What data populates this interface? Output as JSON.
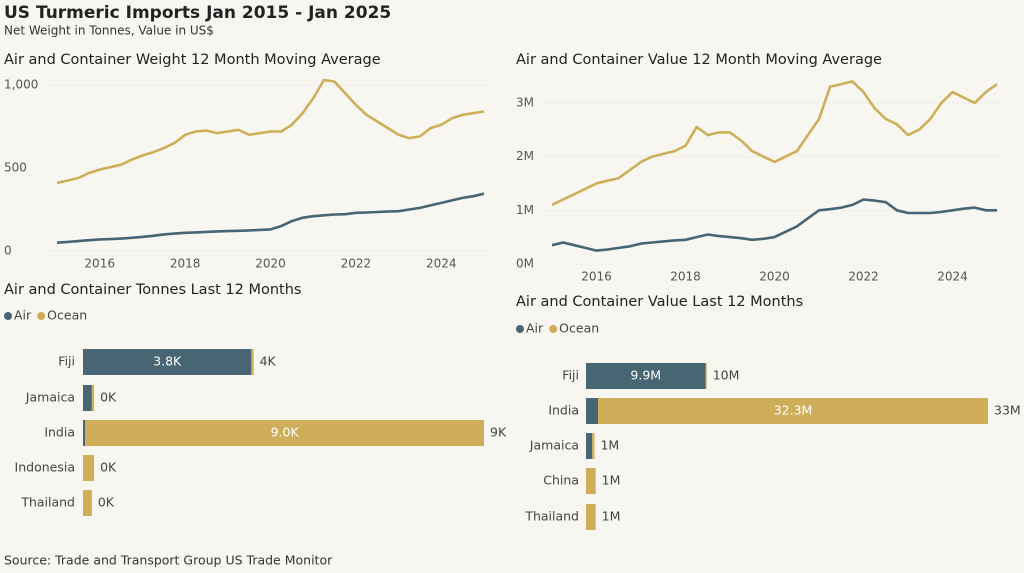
{
  "title": "US Turmeric Imports Jan 2015 - Jan 2025",
  "subtitle": "Net Weight in Tonnes, Value in US$",
  "source": "Source: Trade and Transport Group US Trade Monitor",
  "chart_data": [
    {
      "type": "line",
      "title": "Air and Container Weight 12 Month Moving Average",
      "grid": true,
      "x": [
        2015,
        2015.25,
        2015.5,
        2015.75,
        2016,
        2016.25,
        2016.5,
        2016.75,
        2017,
        2017.25,
        2017.5,
        2017.75,
        2018,
        2018.25,
        2018.5,
        2018.75,
        2019,
        2019.25,
        2019.5,
        2019.75,
        2020,
        2020.25,
        2020.5,
        2020.75,
        2021,
        2021.25,
        2021.5,
        2021.75,
        2022,
        2022.25,
        2022.5,
        2022.75,
        2023,
        2023.25,
        2023.5,
        2023.75,
        2024,
        2024.25,
        2024.5,
        2024.75,
        2025
      ],
      "xlim": [
        2015,
        2025
      ],
      "xticks": [
        2016,
        2018,
        2020,
        2022,
        2024
      ],
      "ylim": [
        -60,
        1060
      ],
      "yticks": [
        0,
        500,
        {
          "value": 1000,
          "label": "1,000"
        }
      ],
      "series": [
        {
          "color": "#476572",
          "values": [
            50,
            55,
            60,
            65,
            70,
            72,
            75,
            80,
            85,
            92,
            100,
            105,
            110,
            112,
            115,
            118,
            120,
            122,
            124,
            127,
            130,
            150,
            180,
            200,
            210,
            215,
            220,
            222,
            230,
            232,
            235,
            238,
            240,
            250,
            260,
            275,
            290,
            305,
            320,
            330,
            345
          ]
        },
        {
          "color": "#cfae5a",
          "values": [
            410,
            425,
            440,
            470,
            490,
            505,
            520,
            550,
            575,
            595,
            620,
            650,
            700,
            720,
            725,
            710,
            720,
            730,
            700,
            710,
            720,
            720,
            760,
            830,
            920,
            1030,
            1020,
            950,
            880,
            820,
            780,
            740,
            700,
            680,
            690,
            740,
            760,
            800,
            820,
            830,
            840
          ]
        }
      ]
    },
    {
      "type": "line",
      "title": "Air and Container Value 12 Month Moving Average",
      "grid": true,
      "x": [
        2015,
        2015.25,
        2015.5,
        2015.75,
        2016,
        2016.25,
        2016.5,
        2016.75,
        2017,
        2017.25,
        2017.5,
        2017.75,
        2018,
        2018.25,
        2018.5,
        2018.75,
        2019,
        2019.25,
        2019.5,
        2019.75,
        2020,
        2020.25,
        2020.5,
        2020.75,
        2021,
        2021.25,
        2021.5,
        2021.75,
        2022,
        2022.25,
        2022.5,
        2022.75,
        2023,
        2023.25,
        2023.5,
        2023.75,
        2024,
        2024.25,
        2024.5,
        2024.75,
        2025
      ],
      "xlim": [
        2015,
        2025
      ],
      "xticks": [
        2016,
        2018,
        2020,
        2022,
        2024
      ],
      "ylim": [
        0,
        3500000
      ],
      "yticks": [
        {
          "value": 0,
          "label": "0M"
        },
        {
          "value": 1000000,
          "label": "1M"
        },
        {
          "value": 2000000,
          "label": "2M"
        },
        {
          "value": 3000000,
          "label": "3M"
        }
      ],
      "series": [
        {
          "color": "#476572",
          "values": [
            350000,
            400000,
            350000,
            300000,
            250000,
            270000,
            300000,
            330000,
            380000,
            400000,
            420000,
            440000,
            450000,
            500000,
            550000,
            520000,
            500000,
            480000,
            450000,
            470000,
            500000,
            600000,
            700000,
            850000,
            1000000,
            1020000,
            1050000,
            1100000,
            1200000,
            1180000,
            1150000,
            1000000,
            950000,
            950000,
            950000,
            970000,
            1000000,
            1030000,
            1050000,
            1000000,
            1000000
          ]
        },
        {
          "color": "#cfae5a",
          "values": [
            1100000,
            1200000,
            1300000,
            1400000,
            1500000,
            1550000,
            1600000,
            1750000,
            1900000,
            2000000,
            2050000,
            2100000,
            2200000,
            2550000,
            2400000,
            2450000,
            2450000,
            2300000,
            2100000,
            2000000,
            1900000,
            2000000,
            2100000,
            2400000,
            2700000,
            3300000,
            3350000,
            3400000,
            3200000,
            2900000,
            2700000,
            2600000,
            2400000,
            2500000,
            2700000,
            3000000,
            3200000,
            3100000,
            3000000,
            3200000,
            3350000
          ]
        }
      ]
    },
    {
      "type": "stacked-hbar",
      "title": "Air and Container Tonnes Last 12 Months",
      "categories": [
        "Fiji",
        "Jamaica",
        "India",
        "Indonesia",
        "Thailand"
      ],
      "xlim": [
        0,
        9050
      ],
      "series": [
        {
          "name": "Air",
          "color": "#476572",
          "values": [
            3800,
            200,
            50,
            0,
            0
          ],
          "value_labels": [
            "3.8K",
            null,
            null,
            null,
            null
          ]
        },
        {
          "name": "Ocean",
          "color": "#cfae5a",
          "values": [
            50,
            50,
            9000,
            250,
            200
          ],
          "value_labels": [
            null,
            null,
            "9.0K",
            null,
            null
          ]
        }
      ],
      "totals": [
        3850,
        250,
        9050,
        250,
        200
      ],
      "total_labels": [
        "4K",
        "0K",
        "9K",
        "0K",
        "0K"
      ]
    },
    {
      "type": "stacked-hbar",
      "title": "Air and Container Value Last 12 Months",
      "categories": [
        "Fiji",
        "India",
        "Jamaica",
        "China",
        "Thailand"
      ],
      "xlim": [
        0,
        33300000
      ],
      "series": [
        {
          "name": "Air",
          "color": "#476572",
          "values": [
            9900000,
            1000000,
            500000,
            0,
            0
          ],
          "value_labels": [
            "9.9M",
            null,
            null,
            null,
            null
          ]
        },
        {
          "name": "Ocean",
          "color": "#cfae5a",
          "values": [
            100000,
            32300000,
            200000,
            800000,
            800000
          ],
          "value_labels": [
            null,
            "32.3M",
            null,
            null,
            null
          ]
        }
      ],
      "totals": [
        10000000,
        33300000,
        700000,
        800000,
        800000
      ],
      "total_labels": [
        "10M",
        "33M",
        "1M",
        "1M",
        "1M"
      ]
    }
  ]
}
